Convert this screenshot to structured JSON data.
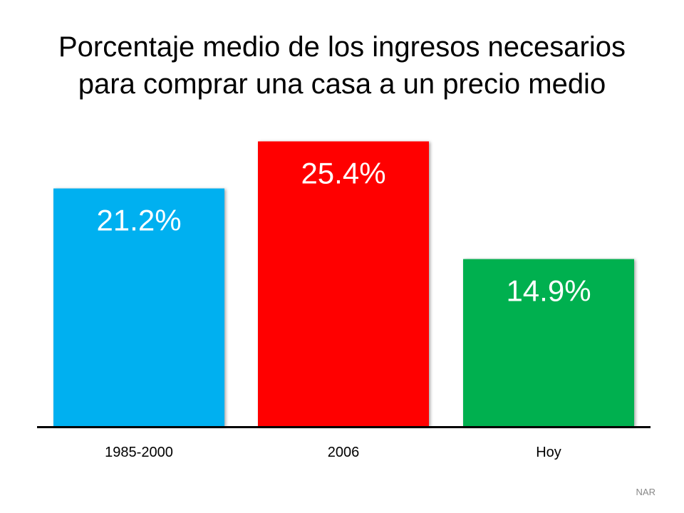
{
  "title_lines": [
    "Porcentaje medio de los ingresos necesarios",
    "para comprar una casa a un precio medio"
  ],
  "source": "NAR",
  "chart_data": {
    "type": "bar",
    "title": "Porcentaje medio de los ingresos necesarios para comprar una casa a un precio medio",
    "categories": [
      "1985-2000",
      "2006",
      "Hoy"
    ],
    "values": [
      21.2,
      25.4,
      14.9
    ],
    "data_labels": [
      "21.2%",
      "25.4%",
      "14.9%"
    ],
    "colors": [
      "#00B0F0",
      "#FF0000",
      "#00B050"
    ],
    "xlabel": "",
    "ylabel": "",
    "ylim": [
      0,
      27
    ],
    "grid": false,
    "legend": "none"
  }
}
